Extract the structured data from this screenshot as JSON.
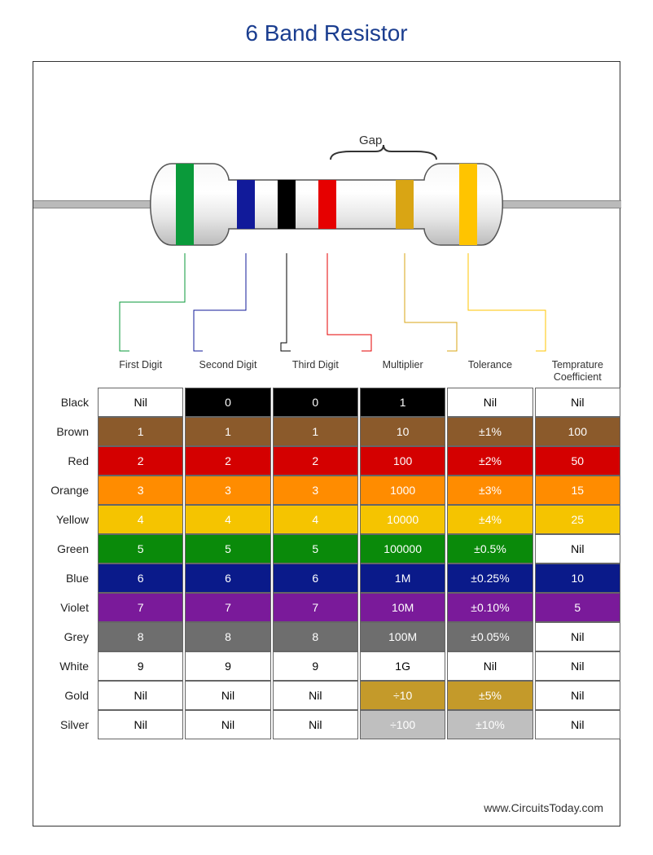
{
  "title": "6 Band Resistor",
  "gap_label": "Gap",
  "credit": "www.CircuitsToday.com",
  "headers": [
    "First Digit",
    "Second Digit",
    "Third Digit",
    "Multiplier",
    "Tolerance",
    "Temprature Coefficient"
  ],
  "band_colors": [
    "#0a9a3a",
    "#111a9a",
    "#000000",
    "#e60000",
    "#d9a514",
    "#ffc400"
  ],
  "callout_colors": [
    "#0a9a3a",
    "#111a9a",
    "#000000",
    "#e60000",
    "#d9a514",
    "#ffc400"
  ],
  "rows": [
    {
      "label": "Black",
      "cells": [
        {
          "text": "Nil",
          "bg": "#ffffff",
          "fg": "#000000"
        },
        {
          "text": "0",
          "bg": "#000000",
          "fg": "#ffffff"
        },
        {
          "text": "0",
          "bg": "#000000",
          "fg": "#ffffff"
        },
        {
          "text": "1",
          "bg": "#000000",
          "fg": "#ffffff"
        },
        {
          "text": "Nil",
          "bg": "#ffffff",
          "fg": "#000000"
        },
        {
          "text": "Nil",
          "bg": "#ffffff",
          "fg": "#000000"
        }
      ]
    },
    {
      "label": "Brown",
      "cells": [
        {
          "text": "1",
          "bg": "#8b5a2b",
          "fg": "#ffffff"
        },
        {
          "text": "1",
          "bg": "#8b5a2b",
          "fg": "#ffffff"
        },
        {
          "text": "1",
          "bg": "#8b5a2b",
          "fg": "#ffffff"
        },
        {
          "text": "10",
          "bg": "#8b5a2b",
          "fg": "#ffffff"
        },
        {
          "text": "±1%",
          "bg": "#8b5a2b",
          "fg": "#ffffff"
        },
        {
          "text": "100",
          "bg": "#8b5a2b",
          "fg": "#ffffff"
        }
      ]
    },
    {
      "label": "Red",
      "cells": [
        {
          "text": "2",
          "bg": "#d40000",
          "fg": "#ffffff"
        },
        {
          "text": "2",
          "bg": "#d40000",
          "fg": "#ffffff"
        },
        {
          "text": "2",
          "bg": "#d40000",
          "fg": "#ffffff"
        },
        {
          "text": "100",
          "bg": "#d40000",
          "fg": "#ffffff"
        },
        {
          "text": "±2%",
          "bg": "#d40000",
          "fg": "#ffffff"
        },
        {
          "text": "50",
          "bg": "#d40000",
          "fg": "#ffffff"
        }
      ]
    },
    {
      "label": "Orange",
      "cells": [
        {
          "text": "3",
          "bg": "#ff8c00",
          "fg": "#ffffff"
        },
        {
          "text": "3",
          "bg": "#ff8c00",
          "fg": "#ffffff"
        },
        {
          "text": "3",
          "bg": "#ff8c00",
          "fg": "#ffffff"
        },
        {
          "text": "1000",
          "bg": "#ff8c00",
          "fg": "#ffffff"
        },
        {
          "text": "±3%",
          "bg": "#ff8c00",
          "fg": "#ffffff"
        },
        {
          "text": "15",
          "bg": "#ff8c00",
          "fg": "#ffffff"
        }
      ]
    },
    {
      "label": "Yellow",
      "cells": [
        {
          "text": "4",
          "bg": "#f5c400",
          "fg": "#ffffff"
        },
        {
          "text": "4",
          "bg": "#f5c400",
          "fg": "#ffffff"
        },
        {
          "text": "4",
          "bg": "#f5c400",
          "fg": "#ffffff"
        },
        {
          "text": "10000",
          "bg": "#f5c400",
          "fg": "#ffffff"
        },
        {
          "text": "±4%",
          "bg": "#f5c400",
          "fg": "#ffffff"
        },
        {
          "text": "25",
          "bg": "#f5c400",
          "fg": "#ffffff"
        }
      ]
    },
    {
      "label": "Green",
      "cells": [
        {
          "text": "5",
          "bg": "#0a8a0a",
          "fg": "#ffffff"
        },
        {
          "text": "5",
          "bg": "#0a8a0a",
          "fg": "#ffffff"
        },
        {
          "text": "5",
          "bg": "#0a8a0a",
          "fg": "#ffffff"
        },
        {
          "text": "100000",
          "bg": "#0a8a0a",
          "fg": "#ffffff"
        },
        {
          "text": "±0.5%",
          "bg": "#0a8a0a",
          "fg": "#ffffff"
        },
        {
          "text": "Nil",
          "bg": "#ffffff",
          "fg": "#000000"
        }
      ]
    },
    {
      "label": "Blue",
      "cells": [
        {
          "text": "6",
          "bg": "#0a1a8a",
          "fg": "#ffffff"
        },
        {
          "text": "6",
          "bg": "#0a1a8a",
          "fg": "#ffffff"
        },
        {
          "text": "6",
          "bg": "#0a1a8a",
          "fg": "#ffffff"
        },
        {
          "text": "1M",
          "bg": "#0a1a8a",
          "fg": "#ffffff"
        },
        {
          "text": "±0.25%",
          "bg": "#0a1a8a",
          "fg": "#ffffff"
        },
        {
          "text": "10",
          "bg": "#0a1a8a",
          "fg": "#ffffff"
        }
      ]
    },
    {
      "label": "Violet",
      "cells": [
        {
          "text": "7",
          "bg": "#7a1a9a",
          "fg": "#ffffff"
        },
        {
          "text": "7",
          "bg": "#7a1a9a",
          "fg": "#ffffff"
        },
        {
          "text": "7",
          "bg": "#7a1a9a",
          "fg": "#ffffff"
        },
        {
          "text": "10M",
          "bg": "#7a1a9a",
          "fg": "#ffffff"
        },
        {
          "text": "±0.10%",
          "bg": "#7a1a9a",
          "fg": "#ffffff"
        },
        {
          "text": "5",
          "bg": "#7a1a9a",
          "fg": "#ffffff"
        }
      ]
    },
    {
      "label": "Grey",
      "cells": [
        {
          "text": "8",
          "bg": "#6e6e6e",
          "fg": "#ffffff"
        },
        {
          "text": "8",
          "bg": "#6e6e6e",
          "fg": "#ffffff"
        },
        {
          "text": "8",
          "bg": "#6e6e6e",
          "fg": "#ffffff"
        },
        {
          "text": "100M",
          "bg": "#6e6e6e",
          "fg": "#ffffff"
        },
        {
          "text": "±0.05%",
          "bg": "#6e6e6e",
          "fg": "#ffffff"
        },
        {
          "text": "Nil",
          "bg": "#ffffff",
          "fg": "#000000"
        }
      ]
    },
    {
      "label": "White",
      "cells": [
        {
          "text": "9",
          "bg": "#ffffff",
          "fg": "#000000"
        },
        {
          "text": "9",
          "bg": "#ffffff",
          "fg": "#000000"
        },
        {
          "text": "9",
          "bg": "#ffffff",
          "fg": "#000000"
        },
        {
          "text": "1G",
          "bg": "#ffffff",
          "fg": "#000000"
        },
        {
          "text": "Nil",
          "bg": "#ffffff",
          "fg": "#000000"
        },
        {
          "text": "Nil",
          "bg": "#ffffff",
          "fg": "#000000"
        }
      ]
    },
    {
      "label": "Gold",
      "cells": [
        {
          "text": "Nil",
          "bg": "#ffffff",
          "fg": "#000000"
        },
        {
          "text": "Nil",
          "bg": "#ffffff",
          "fg": "#000000"
        },
        {
          "text": "Nil",
          "bg": "#ffffff",
          "fg": "#000000"
        },
        {
          "text": "÷10",
          "bg": "#c49a2a",
          "fg": "#ffffff"
        },
        {
          "text": "±5%",
          "bg": "#c49a2a",
          "fg": "#ffffff"
        },
        {
          "text": "Nil",
          "bg": "#ffffff",
          "fg": "#000000"
        }
      ]
    },
    {
      "label": "Silver",
      "cells": [
        {
          "text": "Nil",
          "bg": "#ffffff",
          "fg": "#000000"
        },
        {
          "text": "Nil",
          "bg": "#ffffff",
          "fg": "#000000"
        },
        {
          "text": "Nil",
          "bg": "#ffffff",
          "fg": "#000000"
        },
        {
          "text": "÷100",
          "bg": "#bfbfbf",
          "fg": "#ffffff"
        },
        {
          "text": "±10%",
          "bg": "#bfbfbf",
          "fg": "#ffffff"
        },
        {
          "text": "Nil",
          "bg": "#ffffff",
          "fg": "#000000"
        }
      ]
    }
  ]
}
